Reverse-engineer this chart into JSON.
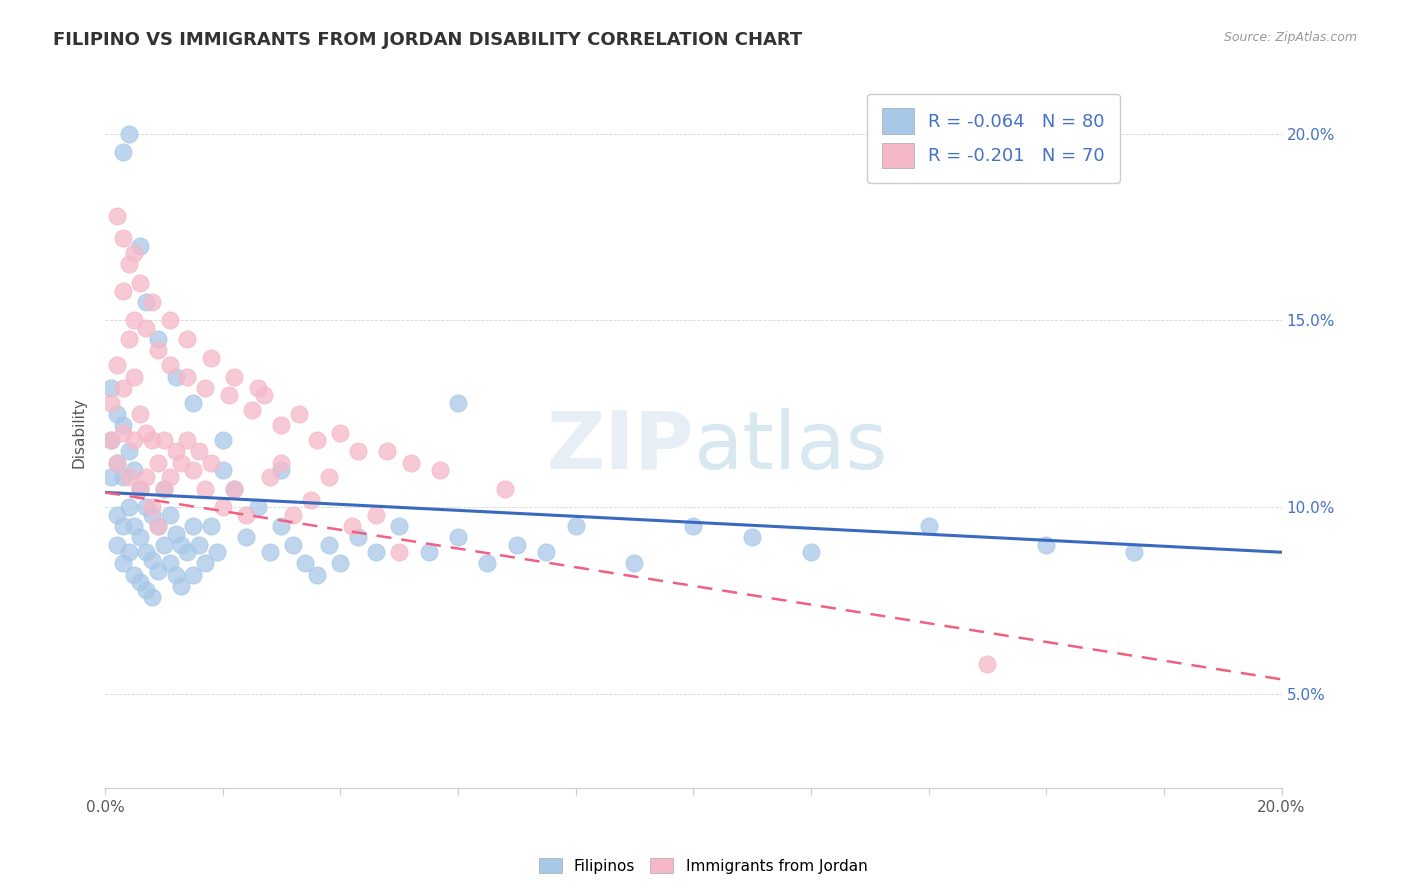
{
  "title": "FILIPINO VS IMMIGRANTS FROM JORDAN DISABILITY CORRELATION CHART",
  "source": "Source: ZipAtlas.com",
  "ylabel": "Disability",
  "xlim": [
    0.0,
    0.2
  ],
  "ylim": [
    0.025,
    0.215
  ],
  "xtick_minor": [
    0.0,
    0.02,
    0.04,
    0.06,
    0.08,
    0.1,
    0.12,
    0.14,
    0.16,
    0.18,
    0.2
  ],
  "yticks": [
    0.05,
    0.1,
    0.15,
    0.2
  ],
  "filipinos_color": "#a8c8e8",
  "jordan_color": "#f5b8c8",
  "filipinos_line_color": "#3a6abf",
  "jordan_line_color": "#f06080",
  "legend_filipinos_color": "#a8c8e8",
  "legend_jordan_color": "#f5b8c8",
  "R_filipinos": -0.064,
  "N_filipinos": 80,
  "R_jordan": -0.201,
  "N_jordan": 70,
  "watermark": "ZIPatlas",
  "filipinos_x": [
    0.001,
    0.001,
    0.001,
    0.002,
    0.002,
    0.002,
    0.002,
    0.003,
    0.003,
    0.003,
    0.003,
    0.004,
    0.004,
    0.004,
    0.005,
    0.005,
    0.005,
    0.006,
    0.006,
    0.006,
    0.007,
    0.007,
    0.007,
    0.008,
    0.008,
    0.008,
    0.009,
    0.009,
    0.01,
    0.01,
    0.011,
    0.011,
    0.012,
    0.012,
    0.013,
    0.013,
    0.014,
    0.015,
    0.015,
    0.016,
    0.017,
    0.018,
    0.019,
    0.02,
    0.022,
    0.024,
    0.026,
    0.028,
    0.03,
    0.032,
    0.034,
    0.036,
    0.038,
    0.04,
    0.043,
    0.046,
    0.05,
    0.055,
    0.06,
    0.065,
    0.07,
    0.075,
    0.08,
    0.09,
    0.1,
    0.11,
    0.12,
    0.14,
    0.16,
    0.175,
    0.003,
    0.004,
    0.006,
    0.007,
    0.009,
    0.012,
    0.015,
    0.02,
    0.03,
    0.06
  ],
  "filipinos_y": [
    0.132,
    0.118,
    0.108,
    0.125,
    0.112,
    0.098,
    0.09,
    0.122,
    0.108,
    0.095,
    0.085,
    0.115,
    0.1,
    0.088,
    0.11,
    0.095,
    0.082,
    0.105,
    0.092,
    0.08,
    0.1,
    0.088,
    0.078,
    0.098,
    0.086,
    0.076,
    0.095,
    0.083,
    0.105,
    0.09,
    0.098,
    0.085,
    0.093,
    0.082,
    0.09,
    0.079,
    0.088,
    0.095,
    0.082,
    0.09,
    0.085,
    0.095,
    0.088,
    0.11,
    0.105,
    0.092,
    0.1,
    0.088,
    0.095,
    0.09,
    0.085,
    0.082,
    0.09,
    0.085,
    0.092,
    0.088,
    0.095,
    0.088,
    0.092,
    0.085,
    0.09,
    0.088,
    0.095,
    0.085,
    0.095,
    0.092,
    0.088,
    0.095,
    0.09,
    0.088,
    0.195,
    0.2,
    0.17,
    0.155,
    0.145,
    0.135,
    0.128,
    0.118,
    0.11,
    0.128
  ],
  "jordan_x": [
    0.001,
    0.001,
    0.002,
    0.002,
    0.003,
    0.003,
    0.004,
    0.004,
    0.005,
    0.005,
    0.006,
    0.006,
    0.007,
    0.007,
    0.008,
    0.008,
    0.009,
    0.009,
    0.01,
    0.01,
    0.011,
    0.012,
    0.013,
    0.014,
    0.015,
    0.016,
    0.017,
    0.018,
    0.02,
    0.022,
    0.024,
    0.026,
    0.028,
    0.03,
    0.032,
    0.035,
    0.038,
    0.042,
    0.046,
    0.05,
    0.003,
    0.005,
    0.007,
    0.009,
    0.011,
    0.014,
    0.017,
    0.021,
    0.025,
    0.03,
    0.036,
    0.043,
    0.052,
    0.004,
    0.006,
    0.008,
    0.011,
    0.014,
    0.018,
    0.022,
    0.027,
    0.033,
    0.04,
    0.048,
    0.057,
    0.068,
    0.15,
    0.002,
    0.003,
    0.005
  ],
  "jordan_y": [
    0.128,
    0.118,
    0.138,
    0.112,
    0.132,
    0.12,
    0.145,
    0.108,
    0.135,
    0.118,
    0.125,
    0.105,
    0.12,
    0.108,
    0.118,
    0.1,
    0.112,
    0.095,
    0.118,
    0.105,
    0.108,
    0.115,
    0.112,
    0.118,
    0.11,
    0.115,
    0.105,
    0.112,
    0.1,
    0.105,
    0.098,
    0.132,
    0.108,
    0.112,
    0.098,
    0.102,
    0.108,
    0.095,
    0.098,
    0.088,
    0.158,
    0.15,
    0.148,
    0.142,
    0.138,
    0.135,
    0.132,
    0.13,
    0.126,
    0.122,
    0.118,
    0.115,
    0.112,
    0.165,
    0.16,
    0.155,
    0.15,
    0.145,
    0.14,
    0.135,
    0.13,
    0.125,
    0.12,
    0.115,
    0.11,
    0.105,
    0.058,
    0.178,
    0.172,
    0.168
  ],
  "filipinos_trend_x": [
    0.0,
    0.2
  ],
  "filipinos_trend_y": [
    0.104,
    0.088
  ],
  "jordan_trend_x": [
    0.0,
    0.2
  ],
  "jordan_trend_y": [
    0.104,
    0.054
  ]
}
